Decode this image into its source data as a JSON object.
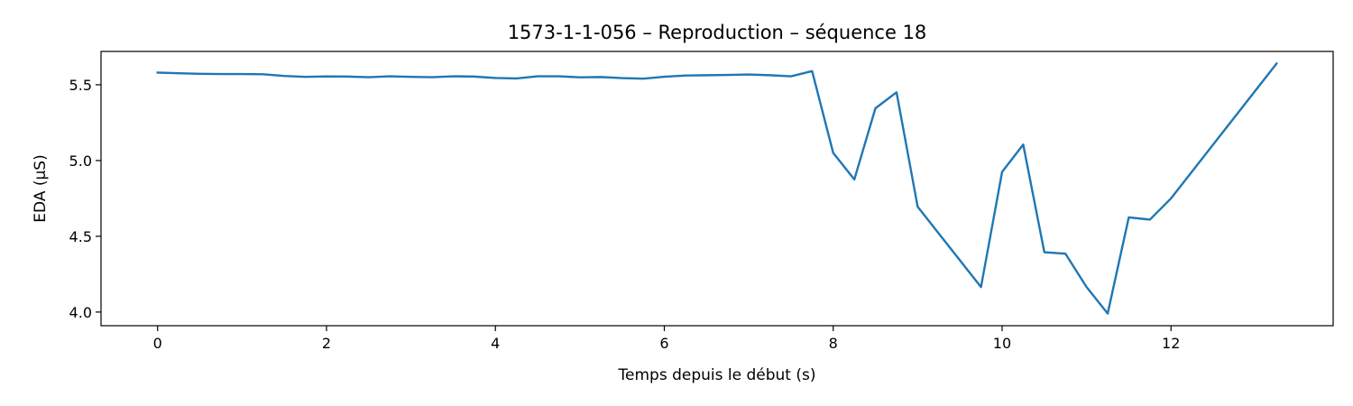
{
  "chart_data": {
    "type": "line",
    "title": "1573-1-1-056 – Reproduction – séquence 18",
    "xlabel": "Temps depuis le début (s)",
    "ylabel": "EDA (µS)",
    "xlim": [
      -0.67,
      13.92
    ],
    "ylim": [
      3.91,
      5.72
    ],
    "x_ticks": [
      0,
      2,
      4,
      6,
      8,
      10,
      12
    ],
    "y_ticks": [
      4.0,
      4.5,
      5.0,
      5.5
    ],
    "x_tick_labels": [
      "0",
      "2",
      "4",
      "6",
      "8",
      "10",
      "12"
    ],
    "y_tick_labels": [
      "4.0",
      "4.5",
      "5.0",
      "5.5"
    ],
    "grid": false,
    "series_color": "#1f77b4",
    "series": [
      {
        "x": [
          0,
          0.25,
          0.5,
          0.75,
          1.0,
          1.25,
          1.5,
          1.75,
          2.0,
          2.25,
          2.5,
          2.75,
          3.0,
          3.25,
          3.5,
          3.75,
          4.0,
          4.25,
          4.5,
          4.75,
          5.0,
          5.25,
          5.5,
          5.75,
          6.0,
          6.25,
          6.5,
          6.75,
          7.0,
          7.25,
          7.5,
          7.75,
          8.0,
          8.25,
          8.5,
          8.75,
          9.0,
          9.75,
          10.0,
          10.25,
          10.5,
          10.75,
          11.0,
          11.25,
          11.5,
          11.75,
          12.0,
          13.25
        ],
        "y": [
          5.58,
          5.576,
          5.572,
          5.571,
          5.571,
          5.569,
          5.558,
          5.552,
          5.555,
          5.554,
          5.55,
          5.556,
          5.552,
          5.55,
          5.556,
          5.554,
          5.545,
          5.542,
          5.556,
          5.556,
          5.549,
          5.551,
          5.544,
          5.54,
          5.553,
          5.561,
          5.563,
          5.565,
          5.568,
          5.563,
          5.556,
          5.59,
          5.05,
          4.875,
          5.345,
          5.45,
          4.695,
          4.165,
          4.925,
          5.105,
          4.395,
          4.385,
          4.165,
          3.99,
          4.625,
          4.61,
          4.75,
          5.64
        ]
      }
    ]
  }
}
